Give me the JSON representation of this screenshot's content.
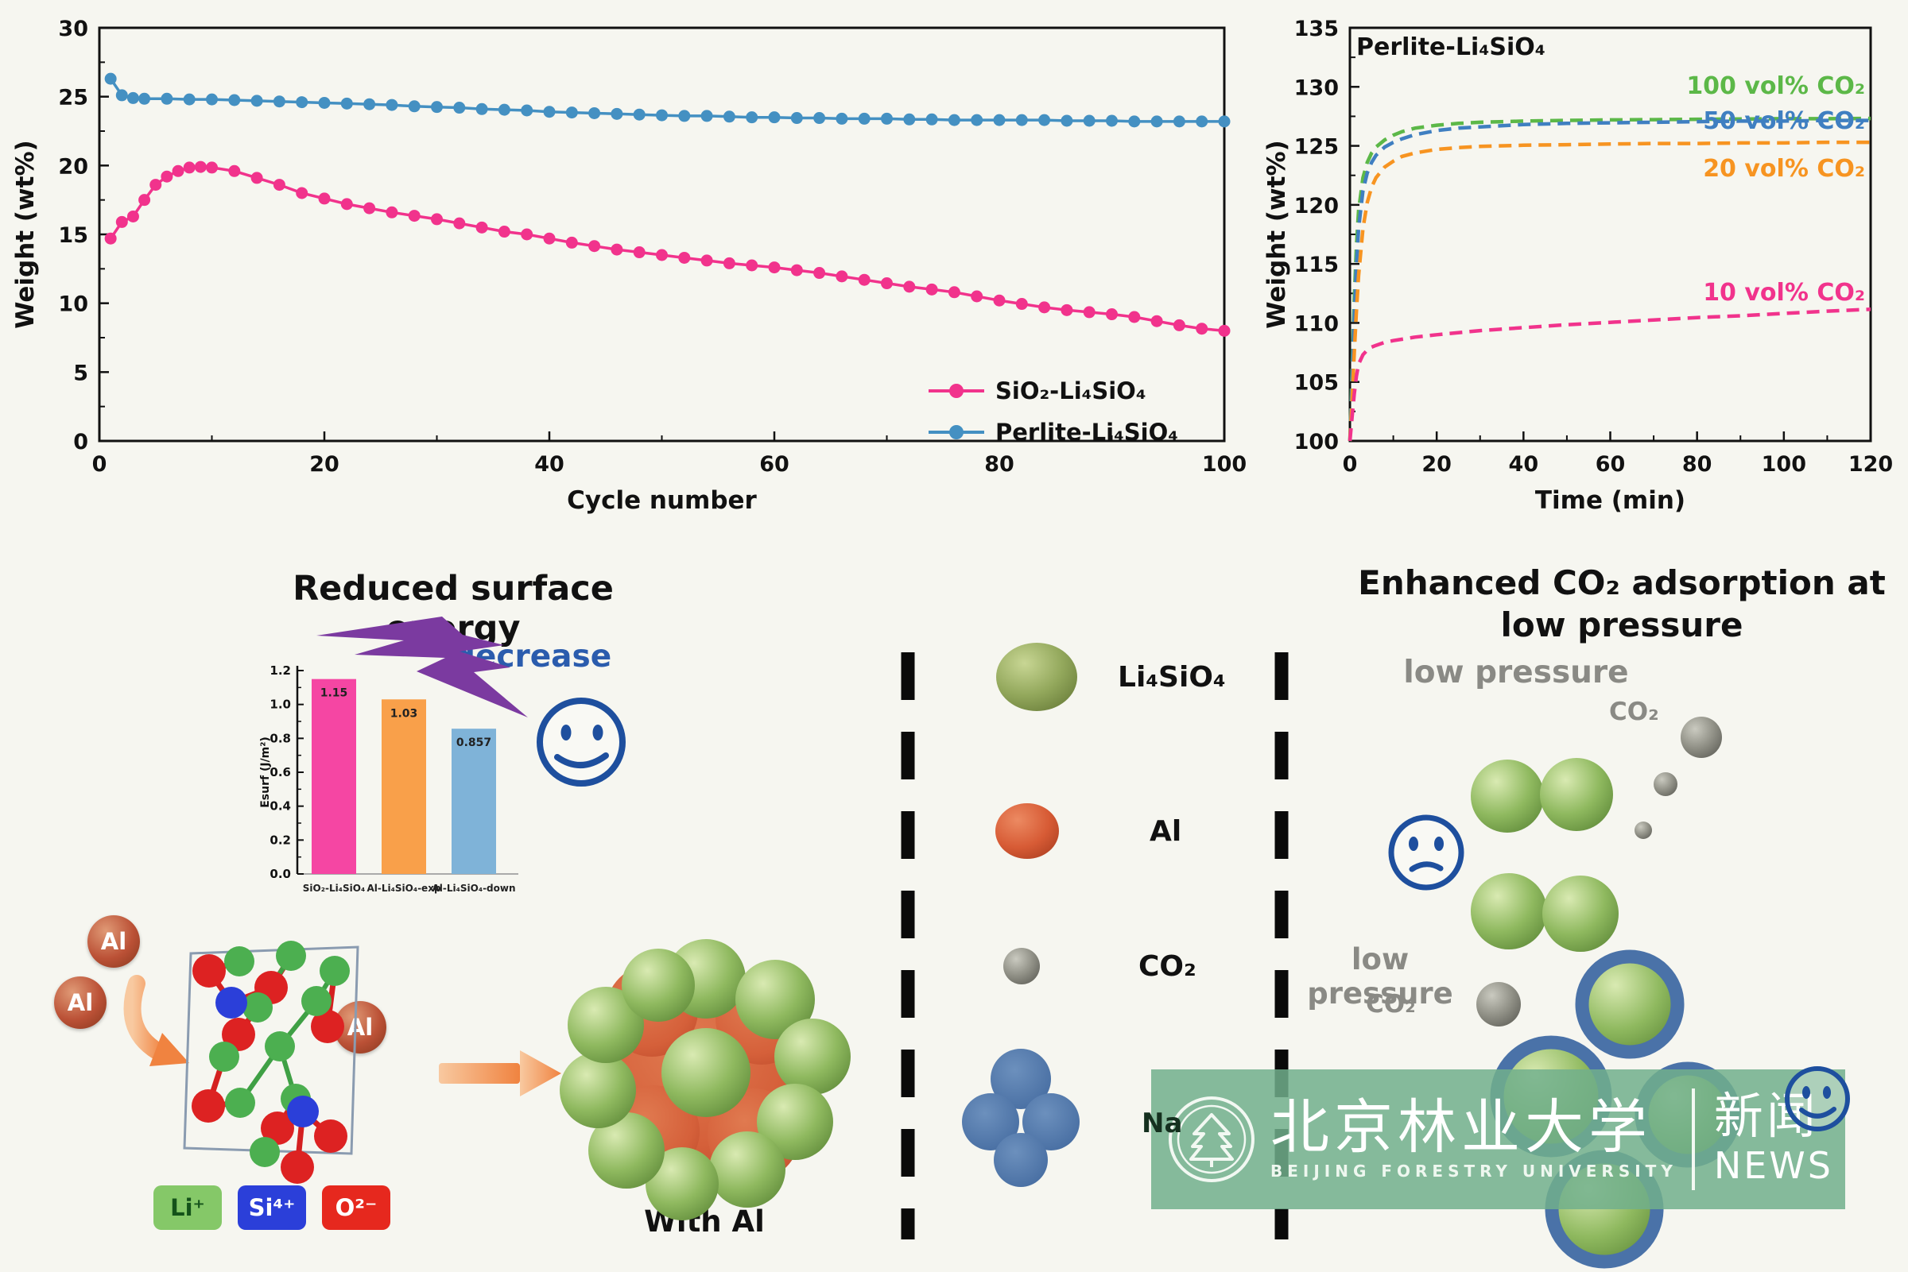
{
  "page": {
    "background": "#f6f6f0"
  },
  "chart_data": [
    {
      "type": "line",
      "id": "cycling",
      "xlabel": "Cycle number",
      "ylabel": "Weight (wt%)",
      "xlim": [
        0,
        100
      ],
      "ylim": [
        0,
        30
      ],
      "xticks": [
        0,
        20,
        40,
        60,
        80,
        100
      ],
      "yticks": [
        0,
        5,
        10,
        15,
        20,
        25,
        30
      ],
      "grid": false,
      "legend_position": "lower right",
      "series": [
        {
          "name": "SiO₂-Li₄SiO₄",
          "color": "#f1338c",
          "markers": true,
          "points": [
            [
              1,
              14.7
            ],
            [
              2,
              15.9
            ],
            [
              3,
              16.3
            ],
            [
              4,
              17.5
            ],
            [
              5,
              18.6
            ],
            [
              6,
              19.2
            ],
            [
              7,
              19.6
            ],
            [
              8,
              19.85
            ],
            [
              9,
              19.9
            ],
            [
              10,
              19.85
            ],
            [
              12,
              19.6
            ],
            [
              14,
              19.1
            ],
            [
              16,
              18.6
            ],
            [
              18,
              18.0
            ],
            [
              20,
              17.6
            ],
            [
              22,
              17.2
            ],
            [
              24,
              16.9
            ],
            [
              26,
              16.6
            ],
            [
              28,
              16.35
            ],
            [
              30,
              16.1
            ],
            [
              32,
              15.8
            ],
            [
              34,
              15.5
            ],
            [
              36,
              15.2
            ],
            [
              38,
              15.0
            ],
            [
              40,
              14.7
            ],
            [
              42,
              14.4
            ],
            [
              44,
              14.15
            ],
            [
              46,
              13.9
            ],
            [
              48,
              13.7
            ],
            [
              50,
              13.5
            ],
            [
              52,
              13.3
            ],
            [
              54,
              13.1
            ],
            [
              56,
              12.9
            ],
            [
              58,
              12.75
            ],
            [
              60,
              12.6
            ],
            [
              62,
              12.4
            ],
            [
              64,
              12.2
            ],
            [
              66,
              11.95
            ],
            [
              68,
              11.7
            ],
            [
              70,
              11.45
            ],
            [
              72,
              11.2
            ],
            [
              74,
              11.0
            ],
            [
              76,
              10.8
            ],
            [
              78,
              10.5
            ],
            [
              80,
              10.2
            ],
            [
              82,
              9.95
            ],
            [
              84,
              9.7
            ],
            [
              86,
              9.5
            ],
            [
              88,
              9.35
            ],
            [
              90,
              9.2
            ],
            [
              92,
              9.0
            ],
            [
              94,
              8.7
            ],
            [
              96,
              8.4
            ],
            [
              98,
              8.15
            ],
            [
              100,
              8.0
            ]
          ]
        },
        {
          "name": "Perlite-Li₄SiO₄",
          "color": "#4490c2",
          "markers": true,
          "points": [
            [
              1,
              26.3
            ],
            [
              2,
              25.1
            ],
            [
              3,
              24.9
            ],
            [
              4,
              24.85
            ],
            [
              6,
              24.85
            ],
            [
              8,
              24.8
            ],
            [
              10,
              24.8
            ],
            [
              12,
              24.75
            ],
            [
              14,
              24.7
            ],
            [
              16,
              24.65
            ],
            [
              18,
              24.6
            ],
            [
              20,
              24.55
            ],
            [
              22,
              24.5
            ],
            [
              24,
              24.45
            ],
            [
              26,
              24.4
            ],
            [
              28,
              24.3
            ],
            [
              30,
              24.25
            ],
            [
              32,
              24.2
            ],
            [
              34,
              24.1
            ],
            [
              36,
              24.05
            ],
            [
              38,
              24.0
            ],
            [
              40,
              23.9
            ],
            [
              42,
              23.85
            ],
            [
              44,
              23.8
            ],
            [
              46,
              23.75
            ],
            [
              48,
              23.7
            ],
            [
              50,
              23.65
            ],
            [
              52,
              23.6
            ],
            [
              54,
              23.6
            ],
            [
              56,
              23.55
            ],
            [
              58,
              23.5
            ],
            [
              60,
              23.5
            ],
            [
              62,
              23.45
            ],
            [
              64,
              23.45
            ],
            [
              66,
              23.4
            ],
            [
              68,
              23.4
            ],
            [
              70,
              23.4
            ],
            [
              72,
              23.35
            ],
            [
              74,
              23.35
            ],
            [
              76,
              23.3
            ],
            [
              78,
              23.3
            ],
            [
              80,
              23.3
            ],
            [
              82,
              23.3
            ],
            [
              84,
              23.3
            ],
            [
              86,
              23.25
            ],
            [
              88,
              23.25
            ],
            [
              90,
              23.25
            ],
            [
              92,
              23.2
            ],
            [
              94,
              23.2
            ],
            [
              96,
              23.2
            ],
            [
              98,
              23.2
            ],
            [
              100,
              23.2
            ]
          ]
        }
      ]
    },
    {
      "type": "line",
      "id": "adsorption",
      "inner_label": "Perlite-Li₄SiO₄",
      "xlabel": "Time (min)",
      "ylabel": "Weight (wt%)",
      "xlim": [
        0,
        120
      ],
      "ylim": [
        100,
        135
      ],
      "xticks": [
        0,
        20,
        40,
        60,
        80,
        100,
        120
      ],
      "yticks": [
        100,
        105,
        110,
        115,
        120,
        125,
        130,
        135
      ],
      "grid": false,
      "line_style": "dashed",
      "series": [
        {
          "name": "100 vol% CO₂",
          "color": "#5cb848",
          "points": [
            [
              0,
              100
            ],
            [
              0.5,
              106
            ],
            [
              1,
              112
            ],
            [
              1.5,
              116.5
            ],
            [
              2,
              119.5
            ],
            [
              3,
              122.3
            ],
            [
              4,
              123.6
            ],
            [
              5,
              124.4
            ],
            [
              6,
              124.9
            ],
            [
              8,
              125.5
            ],
            [
              10,
              125.9
            ],
            [
              12,
              126.2
            ],
            [
              15,
              126.5
            ],
            [
              20,
              126.75
            ],
            [
              25,
              126.9
            ],
            [
              30,
              127.0
            ],
            [
              40,
              127.1
            ],
            [
              50,
              127.15
            ],
            [
              60,
              127.2
            ],
            [
              70,
              127.22
            ],
            [
              80,
              127.25
            ],
            [
              90,
              127.27
            ],
            [
              100,
              127.3
            ],
            [
              110,
              127.3
            ],
            [
              120,
              127.32
            ]
          ]
        },
        {
          "name": "50 vol% CO₂",
          "color": "#3f7fc1",
          "points": [
            [
              0,
              100
            ],
            [
              0.5,
              105
            ],
            [
              1,
              110.5
            ],
            [
              1.5,
              114.8
            ],
            [
              2,
              118
            ],
            [
              3,
              121.2
            ],
            [
              4,
              122.7
            ],
            [
              5,
              123.6
            ],
            [
              6,
              124.2
            ],
            [
              8,
              124.9
            ],
            [
              10,
              125.3
            ],
            [
              12,
              125.6
            ],
            [
              15,
              125.95
            ],
            [
              20,
              126.3
            ],
            [
              25,
              126.5
            ],
            [
              30,
              126.6
            ],
            [
              40,
              126.8
            ],
            [
              50,
              126.9
            ],
            [
              60,
              126.95
            ],
            [
              70,
              127.0
            ],
            [
              80,
              127.05
            ],
            [
              90,
              127.1
            ],
            [
              100,
              127.1
            ],
            [
              110,
              127.15
            ],
            [
              120,
              127.15
            ]
          ]
        },
        {
          "name": "20 vol% CO₂",
          "color": "#f79421",
          "points": [
            [
              0,
              100
            ],
            [
              0.5,
              103.5
            ],
            [
              1,
              107.5
            ],
            [
              1.5,
              111
            ],
            [
              2,
              114
            ],
            [
              3,
              118
            ],
            [
              4,
              120.2
            ],
            [
              5,
              121.5
            ],
            [
              6,
              122.3
            ],
            [
              8,
              123.2
            ],
            [
              10,
              123.7
            ],
            [
              12,
              124.1
            ],
            [
              15,
              124.4
            ],
            [
              20,
              124.7
            ],
            [
              25,
              124.85
            ],
            [
              30,
              124.95
            ],
            [
              40,
              125.05
            ],
            [
              50,
              125.1
            ],
            [
              60,
              125.15
            ],
            [
              70,
              125.2
            ],
            [
              80,
              125.2
            ],
            [
              90,
              125.25
            ],
            [
              100,
              125.25
            ],
            [
              110,
              125.3
            ],
            [
              120,
              125.3
            ]
          ]
        },
        {
          "name": "10 vol% CO₂",
          "color": "#f1338c",
          "points": [
            [
              0,
              100
            ],
            [
              0.5,
              102
            ],
            [
              1,
              104
            ],
            [
              1.5,
              105.5
            ],
            [
              2,
              106.5
            ],
            [
              3,
              107.3
            ],
            [
              4,
              107.7
            ],
            [
              5,
              107.95
            ],
            [
              6,
              108.1
            ],
            [
              8,
              108.35
            ],
            [
              10,
              108.5
            ],
            [
              15,
              108.8
            ],
            [
              20,
              109.0
            ],
            [
              30,
              109.35
            ],
            [
              40,
              109.6
            ],
            [
              50,
              109.85
            ],
            [
              60,
              110.05
            ],
            [
              70,
              110.25
            ],
            [
              80,
              110.45
            ],
            [
              90,
              110.6
            ],
            [
              100,
              110.8
            ],
            [
              110,
              111.0
            ],
            [
              120,
              111.15
            ]
          ]
        }
      ]
    },
    {
      "type": "bar",
      "id": "surface_energy",
      "title": "Reduced surface energy",
      "xlabel": "",
      "ylabel": "Esurf (J/m²)",
      "ylim": [
        0,
        1.2
      ],
      "yticks": [
        0.0,
        0.2,
        0.4,
        0.6,
        0.8,
        1.0,
        1.2
      ],
      "categories": [
        "SiO₂-Li₄SiO₄",
        "Al-Li₄SiO₄-exp",
        "Al-Li₄SiO₄-down"
      ],
      "values": [
        1.15,
        1.03,
        0.857
      ],
      "value_labels": [
        "1.15",
        "1.03",
        "0.857"
      ],
      "colors": [
        "#f546a3",
        "#f9a04a",
        "#7fb3d8"
      ]
    }
  ],
  "annotations": {
    "reduced_title": "Reduced surface energy",
    "decrease": "decrease",
    "with_al": "With Al",
    "enhanced_line1": "Enhanced CO₂ adsorption at",
    "enhanced_line2": "low pressure",
    "low_pressure_1": "low pressure",
    "co2_label_1": "CO₂",
    "low_pressure_2": "low pressure",
    "co2_label_2": "CO₂"
  },
  "atoms": {
    "al": "Al"
  },
  "ion_legend": {
    "li": "Li⁺",
    "si": "Si⁴⁺",
    "o": "O²⁻"
  },
  "side_legend": {
    "item1": "Li₄SiO₄",
    "item2": "Al",
    "item3": "CO₂",
    "item4": "Na"
  },
  "watermark": {
    "cn_name": "北京林业大学",
    "en_name": "BEIJING FORESTRY UNIVERSITY",
    "cn_news": "新闻",
    "en_news": "NEWS"
  }
}
